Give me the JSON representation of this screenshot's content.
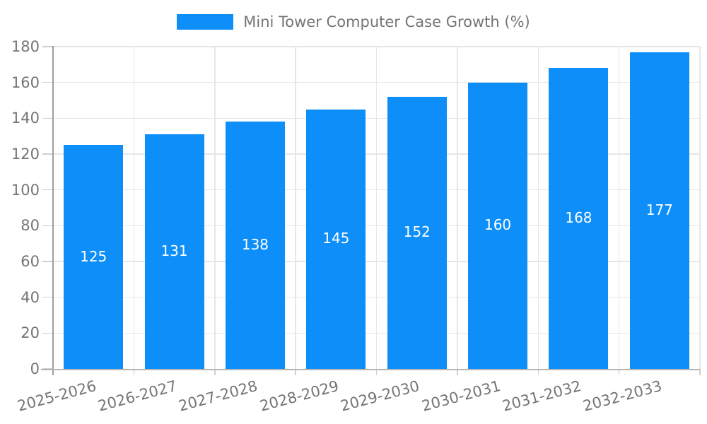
{
  "legend": {
    "label": "Mini Tower Computer Case Growth (%)"
  },
  "chart_data": {
    "type": "bar",
    "title": "Mini Tower Computer Case Growth (%)",
    "categories": [
      "2025-2026",
      "2026-2027",
      "2027-2028",
      "2028-2029",
      "2029-2030",
      "2030-2031",
      "2031-2032",
      "2032-2033"
    ],
    "values": [
      125,
      131,
      138,
      145,
      152,
      160,
      168,
      177
    ],
    "xlabel": "",
    "ylabel": "",
    "ylim": [
      0,
      180
    ],
    "yticks": [
      0,
      20,
      40,
      60,
      80,
      100,
      120,
      140,
      160,
      180
    ],
    "grid": true,
    "legend_position": "top-center",
    "bar_labels_inside": true
  },
  "colors": {
    "bar": "#0d8ef8",
    "bar_label": "#ffffff",
    "axis_text": "#757575",
    "grid_line": "#e6e6e6",
    "y_axis_line": "#9e9e9e",
    "x_axis_line": "#b5b5b5",
    "tick": "#cfcfcf",
    "background": "#ffffff"
  }
}
